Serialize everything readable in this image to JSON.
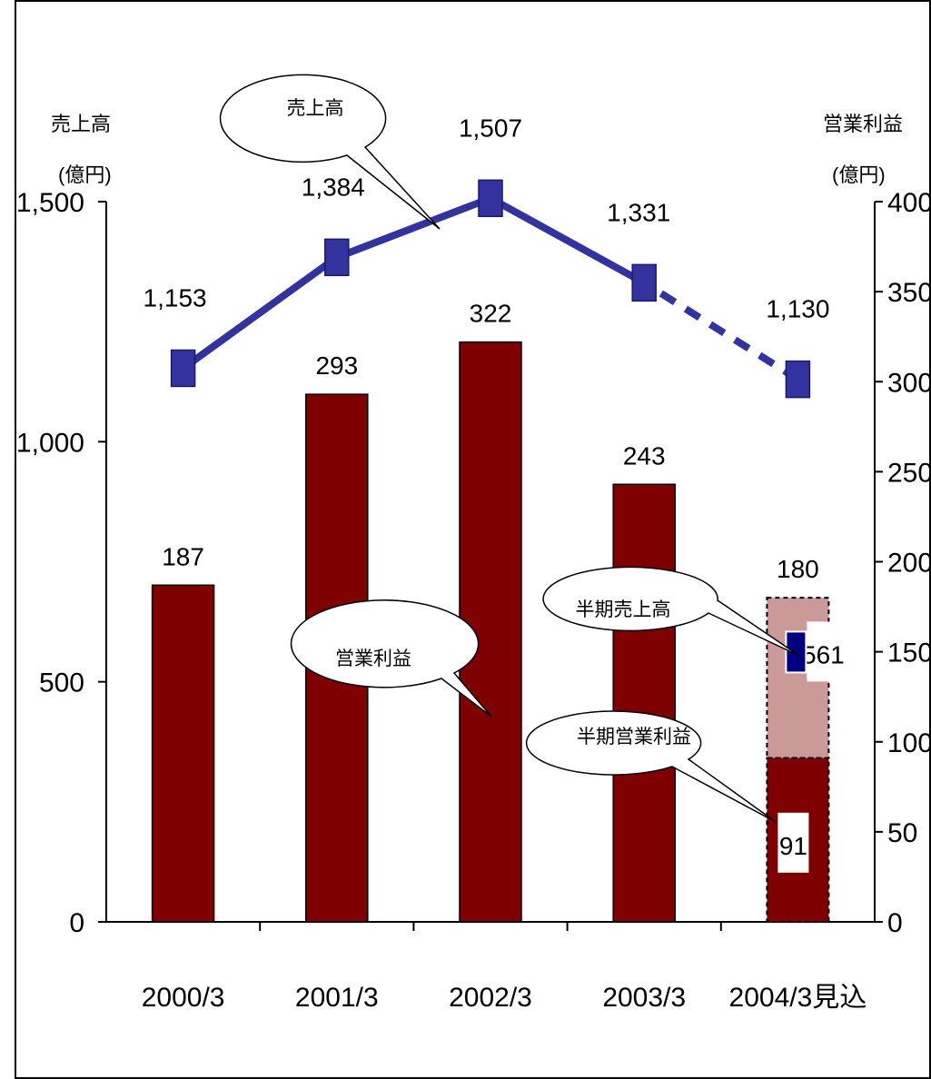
{
  "chart_data": {
    "type": "bar",
    "categories": [
      "2000/3",
      "2001/3",
      "2002/3",
      "2003/3",
      "2004/3見込"
    ],
    "left_axis": {
      "label_line1": "売上高",
      "label_line2": "(億円)",
      "ylim": [
        0,
        1500
      ],
      "ticks": [
        "0",
        "500",
        "1,000",
        "1,500"
      ]
    },
    "right_axis": {
      "label_line1": "営業利益",
      "label_line2": "(億円)",
      "ylim": [
        0,
        400
      ],
      "ticks": [
        "0",
        "50",
        "100",
        "150",
        "200",
        "250",
        "300",
        "350",
        "400"
      ]
    },
    "series": [
      {
        "name": "営業利益",
        "kind": "bar",
        "axis": "right",
        "color": "#7F0000",
        "values": [
          187,
          293,
          322,
          243,
          180
        ],
        "labels": [
          "187",
          "293",
          "322",
          "243",
          "180"
        ]
      },
      {
        "name": "売上高",
        "kind": "line",
        "axis": "left",
        "color": "#3333A0",
        "values": [
          1153,
          1384,
          1507,
          1331,
          1130
        ],
        "labels": [
          "1,153",
          "1,384",
          "1,507",
          "1,331",
          "1,130"
        ],
        "last_segment_dashed": true
      }
    ],
    "half_year": {
      "operating_profit": {
        "name": "半期営業利益",
        "value": 91,
        "label": "91",
        "color": "#7F0000"
      },
      "sales": {
        "name": "半期売上高",
        "value": 561,
        "label": "561",
        "color": "#000080"
      },
      "projected_fill_color": "#CC9999"
    },
    "callouts": [
      "売上高",
      "営業利益",
      "半期売上高",
      "半期営業利益"
    ],
    "grid": false,
    "legend": "none"
  }
}
